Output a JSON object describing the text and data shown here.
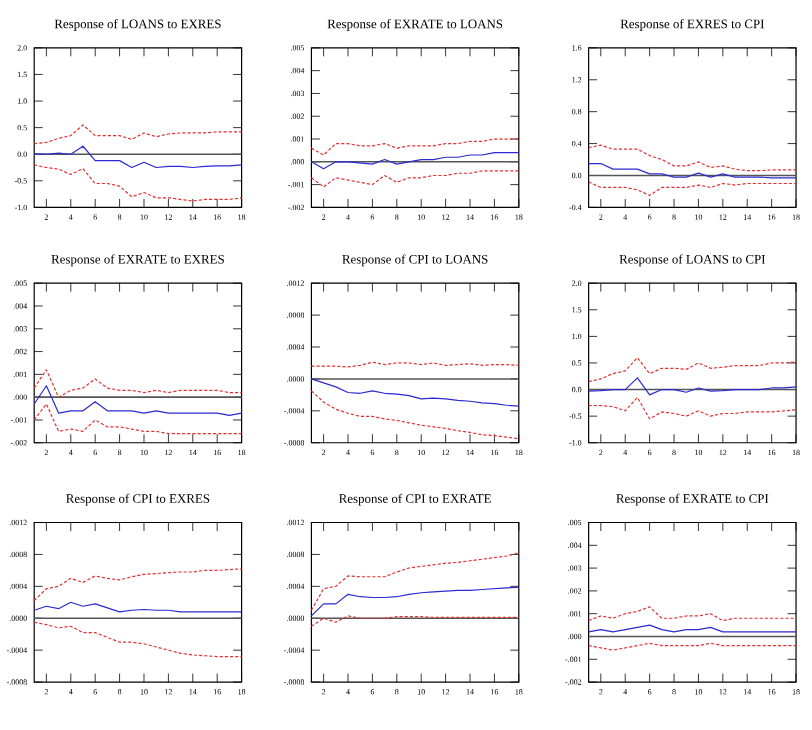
{
  "chart_data": [
    {
      "type": "line",
      "title": "Response of LOANS to EXRES",
      "x": [
        1,
        2,
        3,
        4,
        5,
        6,
        7,
        8,
        9,
        10,
        11,
        12,
        13,
        14,
        15,
        16,
        17,
        18
      ],
      "xlim": [
        1,
        18
      ],
      "xticks": [
        2,
        4,
        6,
        8,
        10,
        12,
        14,
        16,
        18
      ],
      "ylim": [
        -1.0,
        2.0
      ],
      "yticks": [
        {
          "value": -1.0,
          "label": "-1.0"
        },
        {
          "value": -0.5,
          "label": "-0.5"
        },
        {
          "value": 0.0,
          "label": "0.0"
        },
        {
          "value": 0.5,
          "label": "0.5"
        },
        {
          "value": 1.0,
          "label": "1.0"
        },
        {
          "value": 1.5,
          "label": "1.5"
        },
        {
          "value": 2.0,
          "label": "2.0"
        }
      ],
      "ref_lines": [
        {
          "axis": "y",
          "value": 0,
          "color": "#555555"
        }
      ],
      "series": [
        {
          "color": "#2a2ad0",
          "line_style": "solid",
          "values": [
            0.0,
            0.0,
            0.02,
            0.0,
            0.15,
            -0.12,
            -0.12,
            -0.12,
            -0.25,
            -0.15,
            -0.25,
            -0.23,
            -0.23,
            -0.25,
            -0.23,
            -0.22,
            -0.22,
            -0.2
          ]
        },
        {
          "color": "#e03030",
          "line_style": "dashed",
          "values": [
            0.2,
            0.22,
            0.3,
            0.35,
            0.55,
            0.35,
            0.35,
            0.35,
            0.28,
            0.4,
            0.33,
            0.38,
            0.4,
            0.4,
            0.4,
            0.42,
            0.42,
            0.42
          ]
        },
        {
          "color": "#e03030",
          "line_style": "dashed",
          "values": [
            -0.2,
            -0.25,
            -0.28,
            -0.38,
            -0.27,
            -0.55,
            -0.55,
            -0.6,
            -0.8,
            -0.72,
            -0.82,
            -0.82,
            -0.85,
            -0.88,
            -0.85,
            -0.85,
            -0.85,
            -0.82
          ]
        }
      ]
    },
    {
      "type": "line",
      "title": "Response of EXRATE to LOANS",
      "x": [
        1,
        2,
        3,
        4,
        5,
        6,
        7,
        8,
        9,
        10,
        11,
        12,
        13,
        14,
        15,
        16,
        17,
        18
      ],
      "xlim": [
        1,
        18
      ],
      "xticks": [
        2,
        4,
        6,
        8,
        10,
        12,
        14,
        16,
        18
      ],
      "ylim": [
        -0.002,
        0.005
      ],
      "yticks": [
        {
          "value": -0.002,
          "label": "-.002"
        },
        {
          "value": -0.001,
          "label": "-.001"
        },
        {
          "value": 0.0,
          "label": ".000"
        },
        {
          "value": 0.001,
          "label": ".001"
        },
        {
          "value": 0.002,
          "label": ".002"
        },
        {
          "value": 0.003,
          "label": ".003"
        },
        {
          "value": 0.004,
          "label": ".004"
        },
        {
          "value": 0.005,
          "label": ".005"
        }
      ],
      "ref_lines": [
        {
          "axis": "y",
          "value": 0,
          "color": "#555555"
        }
      ],
      "series": [
        {
          "color": "#2a2ad0",
          "line_style": "solid",
          "values": [
            0.0,
            -0.0003,
            0.0,
            0.0,
            -5e-05,
            -0.0001,
            0.0001,
            -0.0001,
            0.0,
            0.0001,
            0.0001,
            0.0002,
            0.0002,
            0.0003,
            0.0003,
            0.0004,
            0.0004,
            0.0004
          ]
        },
        {
          "color": "#e03030",
          "line_style": "dashed",
          "values": [
            0.0006,
            0.0003,
            0.0008,
            0.0008,
            0.0007,
            0.0007,
            0.0008,
            0.0006,
            0.0007,
            0.0007,
            0.0007,
            0.0008,
            0.0008,
            0.0009,
            0.0009,
            0.001,
            0.001,
            0.001
          ]
        },
        {
          "color": "#e03030",
          "line_style": "dashed",
          "values": [
            -0.0007,
            -0.0011,
            -0.0007,
            -0.0008,
            -0.0009,
            -0.001,
            -0.0006,
            -0.0009,
            -0.0007,
            -0.0007,
            -0.0006,
            -0.0006,
            -0.0005,
            -0.0005,
            -0.0004,
            -0.0004,
            -0.0004,
            -0.0004
          ]
        }
      ]
    },
    {
      "type": "line",
      "title": "Response of EXRES to CPI",
      "x": [
        1,
        2,
        3,
        4,
        5,
        6,
        7,
        8,
        9,
        10,
        11,
        12,
        13,
        14,
        15,
        16,
        17,
        18
      ],
      "xlim": [
        1,
        18
      ],
      "xticks": [
        2,
        4,
        6,
        8,
        10,
        12,
        14,
        16,
        18
      ],
      "ylim": [
        -0.4,
        1.6
      ],
      "yticks": [
        {
          "value": -0.4,
          "label": "-0.4"
        },
        {
          "value": 0.0,
          "label": "0.0"
        },
        {
          "value": 0.4,
          "label": "0.4"
        },
        {
          "value": 0.8,
          "label": "0.8"
        },
        {
          "value": 1.2,
          "label": "1.2"
        },
        {
          "value": 1.6,
          "label": "1.6"
        }
      ],
      "ref_lines": [
        {
          "axis": "y",
          "value": 0,
          "color": "#555555"
        }
      ],
      "series": [
        {
          "color": "#2a2ad0",
          "line_style": "solid",
          "values": [
            0.15,
            0.15,
            0.08,
            0.08,
            0.08,
            0.02,
            0.02,
            -0.02,
            -0.02,
            0.03,
            -0.02,
            0.02,
            -0.02,
            -0.02,
            -0.02,
            -0.03,
            -0.03,
            -0.03
          ]
        },
        {
          "color": "#e03030",
          "line_style": "dashed",
          "values": [
            0.35,
            0.38,
            0.33,
            0.33,
            0.33,
            0.25,
            0.2,
            0.12,
            0.12,
            0.17,
            0.1,
            0.12,
            0.08,
            0.06,
            0.06,
            0.07,
            0.07,
            0.07
          ]
        },
        {
          "color": "#e03030",
          "line_style": "dashed",
          "values": [
            -0.08,
            -0.15,
            -0.15,
            -0.15,
            -0.18,
            -0.25,
            -0.15,
            -0.15,
            -0.15,
            -0.12,
            -0.15,
            -0.1,
            -0.12,
            -0.1,
            -0.1,
            -0.1,
            -0.1,
            -0.1
          ]
        }
      ]
    },
    {
      "type": "line",
      "title": "Response of EXRATE to EXRES",
      "x": [
        1,
        2,
        3,
        4,
        5,
        6,
        7,
        8,
        9,
        10,
        11,
        12,
        13,
        14,
        15,
        16,
        17,
        18
      ],
      "xlim": [
        1,
        18
      ],
      "xticks": [
        2,
        4,
        6,
        8,
        10,
        12,
        14,
        16,
        18
      ],
      "ylim": [
        -0.002,
        0.005
      ],
      "yticks": [
        {
          "value": -0.002,
          "label": "-.002"
        },
        {
          "value": -0.001,
          "label": "-.001"
        },
        {
          "value": 0.0,
          "label": ".000"
        },
        {
          "value": 0.001,
          "label": ".001"
        },
        {
          "value": 0.002,
          "label": ".002"
        },
        {
          "value": 0.003,
          "label": ".003"
        },
        {
          "value": 0.004,
          "label": ".004"
        },
        {
          "value": 0.005,
          "label": ".005"
        }
      ],
      "ref_lines": [
        {
          "axis": "y",
          "value": 0,
          "color": "#555555"
        }
      ],
      "series": [
        {
          "color": "#2a2ad0",
          "line_style": "solid",
          "values": [
            -0.0003,
            0.0005,
            -0.0007,
            -0.0006,
            -0.0006,
            -0.0002,
            -0.0006,
            -0.0006,
            -0.0006,
            -0.0007,
            -0.0006,
            -0.0007,
            -0.0007,
            -0.0007,
            -0.0007,
            -0.0007,
            -0.0008,
            -0.0007
          ]
        },
        {
          "color": "#e03030",
          "line_style": "dashed",
          "values": [
            0.0004,
            0.0012,
            0.0,
            0.0003,
            0.0004,
            0.0008,
            0.0004,
            0.0003,
            0.0003,
            0.0002,
            0.0003,
            0.0002,
            0.0003,
            0.0003,
            0.0003,
            0.0003,
            0.0002,
            0.0002
          ]
        },
        {
          "color": "#e03030",
          "line_style": "dashed",
          "values": [
            -0.001,
            -0.0003,
            -0.0015,
            -0.0014,
            -0.0015,
            -0.001,
            -0.0013,
            -0.0013,
            -0.0014,
            -0.0015,
            -0.0015,
            -0.0016,
            -0.0016,
            -0.0016,
            -0.0016,
            -0.0016,
            -0.0016,
            -0.0016
          ]
        }
      ]
    },
    {
      "type": "line",
      "title": "Response of CPI to LOANS",
      "x": [
        1,
        2,
        3,
        4,
        5,
        6,
        7,
        8,
        9,
        10,
        11,
        12,
        13,
        14,
        15,
        16,
        17,
        18
      ],
      "xlim": [
        1,
        18
      ],
      "xticks": [
        2,
        4,
        6,
        8,
        10,
        12,
        14,
        16,
        18
      ],
      "ylim": [
        -0.0008,
        0.0012
      ],
      "yticks": [
        {
          "value": -0.0008,
          "label": "-.0008"
        },
        {
          "value": -0.0004,
          "label": "-.0004"
        },
        {
          "value": 0.0,
          "label": ".0000"
        },
        {
          "value": 0.0004,
          "label": ".0004"
        },
        {
          "value": 0.0008,
          "label": ".0008"
        },
        {
          "value": 0.0012,
          "label": ".0012"
        }
      ],
      "ref_lines": [
        {
          "axis": "y",
          "value": 0,
          "color": "#555555"
        }
      ],
      "series": [
        {
          "color": "#2a2ad0",
          "line_style": "solid",
          "values": [
            0.0,
            -5e-05,
            -0.0001,
            -0.00017,
            -0.00018,
            -0.00015,
            -0.00018,
            -0.00019,
            -0.00021,
            -0.00025,
            -0.00024,
            -0.00025,
            -0.00027,
            -0.00028,
            -0.0003,
            -0.00031,
            -0.00033,
            -0.00034
          ]
        },
        {
          "color": "#e03030",
          "line_style": "dashed",
          "values": [
            0.00016,
            0.00016,
            0.00016,
            0.00015,
            0.00017,
            0.00021,
            0.00018,
            0.0002,
            0.0002,
            0.00018,
            0.0002,
            0.00017,
            0.00018,
            0.00019,
            0.00017,
            0.00018,
            0.00018,
            0.00017
          ]
        },
        {
          "color": "#e03030",
          "line_style": "dashed",
          "values": [
            -0.00015,
            -0.00029,
            -0.00038,
            -0.00043,
            -0.00047,
            -0.00047,
            -0.0005,
            -0.00052,
            -0.00055,
            -0.00058,
            -0.0006,
            -0.00062,
            -0.00065,
            -0.00067,
            -0.0007,
            -0.00071,
            -0.00073,
            -0.00075
          ]
        }
      ]
    },
    {
      "type": "line",
      "title": "Response of LOANS to CPI",
      "x": [
        1,
        2,
        3,
        4,
        5,
        6,
        7,
        8,
        9,
        10,
        11,
        12,
        13,
        14,
        15,
        16,
        17,
        18
      ],
      "xlim": [
        1,
        18
      ],
      "xticks": [
        2,
        4,
        6,
        8,
        10,
        12,
        14,
        16,
        18
      ],
      "ylim": [
        -1.0,
        2.0
      ],
      "yticks": [
        {
          "value": -1.0,
          "label": "-1.0"
        },
        {
          "value": -0.5,
          "label": "-0.5"
        },
        {
          "value": 0.0,
          "label": "0.0"
        },
        {
          "value": 0.5,
          "label": "0.5"
        },
        {
          "value": 1.0,
          "label": "1.0"
        },
        {
          "value": 1.5,
          "label": "1.5"
        },
        {
          "value": 2.0,
          "label": "2.0"
        }
      ],
      "ref_lines": [
        {
          "axis": "y",
          "value": 0,
          "color": "#555555"
        }
      ],
      "series": [
        {
          "color": "#2a2ad0",
          "line_style": "solid",
          "values": [
            -0.03,
            -0.02,
            0.0,
            0.0,
            0.22,
            -0.1,
            0.0,
            0.0,
            -0.05,
            0.03,
            -0.03,
            -0.02,
            0.0,
            0.0,
            0.0,
            0.03,
            0.03,
            0.05
          ]
        },
        {
          "color": "#e03030",
          "line_style": "dashed",
          "values": [
            0.15,
            0.2,
            0.3,
            0.35,
            0.6,
            0.3,
            0.4,
            0.4,
            0.38,
            0.5,
            0.4,
            0.42,
            0.45,
            0.45,
            0.45,
            0.5,
            0.5,
            0.52
          ]
        },
        {
          "color": "#e03030",
          "line_style": "dashed",
          "values": [
            -0.3,
            -0.3,
            -0.32,
            -0.4,
            -0.15,
            -0.55,
            -0.42,
            -0.45,
            -0.5,
            -0.4,
            -0.5,
            -0.45,
            -0.45,
            -0.42,
            -0.42,
            -0.42,
            -0.4,
            -0.38
          ]
        }
      ]
    },
    {
      "type": "line",
      "title": "Response of CPI to EXRES",
      "x": [
        1,
        2,
        3,
        4,
        5,
        6,
        7,
        8,
        9,
        10,
        11,
        12,
        13,
        14,
        15,
        16,
        17,
        18
      ],
      "xlim": [
        1,
        18
      ],
      "xticks": [
        2,
        4,
        6,
        8,
        10,
        12,
        14,
        16,
        18
      ],
      "ylim": [
        -0.0008,
        0.0012
      ],
      "yticks": [
        {
          "value": -0.0008,
          "label": "-.0008"
        },
        {
          "value": -0.0004,
          "label": "-.0004"
        },
        {
          "value": 0.0,
          "label": ".0000"
        },
        {
          "value": 0.0004,
          "label": ".0004"
        },
        {
          "value": 0.0008,
          "label": ".0008"
        },
        {
          "value": 0.0012,
          "label": ".0012"
        }
      ],
      "ref_lines": [
        {
          "axis": "y",
          "value": 0,
          "color": "#555555"
        }
      ],
      "series": [
        {
          "color": "#2a2ad0",
          "line_style": "solid",
          "values": [
            0.0001,
            0.00015,
            0.00012,
            0.0002,
            0.00015,
            0.00018,
            0.00013,
            8e-05,
            0.0001,
            0.00011,
            0.0001,
            0.0001,
            8e-05,
            8e-05,
            8e-05,
            8e-05,
            8e-05,
            8e-05
          ]
        },
        {
          "color": "#e03030",
          "line_style": "dashed",
          "values": [
            0.00022,
            0.00037,
            0.0004,
            0.0005,
            0.00045,
            0.00053,
            0.0005,
            0.00048,
            0.00052,
            0.00055,
            0.00056,
            0.00057,
            0.00058,
            0.00058,
            0.0006,
            0.0006,
            0.00061,
            0.00062
          ]
        },
        {
          "color": "#e03030",
          "line_style": "dashed",
          "values": [
            -5e-05,
            -8e-05,
            -0.00012,
            -0.0001,
            -0.00018,
            -0.00018,
            -0.00024,
            -0.0003,
            -0.0003,
            -0.00032,
            -0.00036,
            -0.0004,
            -0.00044,
            -0.00046,
            -0.00047,
            -0.00048,
            -0.00048,
            -0.00048
          ]
        }
      ]
    },
    {
      "type": "line",
      "title": "Response of CPI to EXRATE",
      "x": [
        1,
        2,
        3,
        4,
        5,
        6,
        7,
        8,
        9,
        10,
        11,
        12,
        13,
        14,
        15,
        16,
        17,
        18
      ],
      "xlim": [
        1,
        18
      ],
      "xticks": [
        2,
        4,
        6,
        8,
        10,
        12,
        14,
        16,
        18
      ],
      "ylim": [
        -0.0008,
        0.0012
      ],
      "yticks": [
        {
          "value": -0.0008,
          "label": "-.0008"
        },
        {
          "value": -0.0004,
          "label": "-.0004"
        },
        {
          "value": 0.0,
          "label": ".0000"
        },
        {
          "value": 0.0004,
          "label": ".0004"
        },
        {
          "value": 0.0008,
          "label": ".0008"
        },
        {
          "value": 0.0012,
          "label": ".0012"
        }
      ],
      "ref_lines": [
        {
          "axis": "y",
          "value": 0,
          "color": "#555555"
        }
      ],
      "series": [
        {
          "color": "#2a2ad0",
          "line_style": "solid",
          "values": [
            3e-05,
            0.00018,
            0.00018,
            0.0003,
            0.00027,
            0.00026,
            0.00026,
            0.00027,
            0.0003,
            0.00032,
            0.00033,
            0.00034,
            0.00035,
            0.00035,
            0.00036,
            0.00037,
            0.00038,
            0.00039
          ]
        },
        {
          "color": "#e03030",
          "line_style": "dashed",
          "values": [
            0.0001,
            0.00037,
            0.0004,
            0.00053,
            0.00052,
            0.00052,
            0.00052,
            0.00058,
            0.00063,
            0.00065,
            0.00067,
            0.00069,
            0.0007,
            0.00072,
            0.00074,
            0.00076,
            0.00078,
            0.00082
          ]
        },
        {
          "color": "#e03030",
          "line_style": "dashed",
          "values": [
            -0.0001,
            0.0,
            -5e-05,
            3e-05,
            0.0,
            0.0,
            0.0,
            2e-05,
            2e-05,
            2e-05,
            1e-05,
            1e-05,
            1e-05,
            1e-05,
            1e-05,
            1e-05,
            1e-05,
            1e-05
          ]
        }
      ]
    },
    {
      "type": "line",
      "title": "Response of EXRATE to CPI",
      "x": [
        1,
        2,
        3,
        4,
        5,
        6,
        7,
        8,
        9,
        10,
        11,
        12,
        13,
        14,
        15,
        16,
        17,
        18
      ],
      "xlim": [
        1,
        18
      ],
      "xticks": [
        2,
        4,
        6,
        8,
        10,
        12,
        14,
        16,
        18
      ],
      "ylim": [
        -0.002,
        0.005
      ],
      "yticks": [
        {
          "value": -0.002,
          "label": "-.002"
        },
        {
          "value": -0.001,
          "label": "-.001"
        },
        {
          "value": 0.0,
          "label": ".000"
        },
        {
          "value": 0.001,
          "label": ".001"
        },
        {
          "value": 0.002,
          "label": ".002"
        },
        {
          "value": 0.003,
          "label": ".003"
        },
        {
          "value": 0.004,
          "label": ".004"
        },
        {
          "value": 0.005,
          "label": ".005"
        }
      ],
      "ref_lines": [
        {
          "axis": "y",
          "value": 0,
          "color": "#555555"
        }
      ],
      "series": [
        {
          "color": "#2a2ad0",
          "line_style": "solid",
          "values": [
            0.0002,
            0.0003,
            0.0002,
            0.0003,
            0.0004,
            0.0005,
            0.0003,
            0.0002,
            0.0003,
            0.0003,
            0.0004,
            0.0002,
            0.0002,
            0.0002,
            0.0002,
            0.0002,
            0.0002,
            0.0002
          ]
        },
        {
          "color": "#e03030",
          "line_style": "dashed",
          "values": [
            0.0007,
            0.0009,
            0.0008,
            0.001,
            0.0011,
            0.0013,
            0.0008,
            0.0008,
            0.0009,
            0.0009,
            0.001,
            0.0007,
            0.0008,
            0.0008,
            0.0008,
            0.0008,
            0.0008,
            0.0008
          ]
        },
        {
          "color": "#e03030",
          "line_style": "dashed",
          "values": [
            -0.0004,
            -0.0005,
            -0.0006,
            -0.0005,
            -0.0004,
            -0.0003,
            -0.0004,
            -0.0004,
            -0.0004,
            -0.0004,
            -0.0003,
            -0.0004,
            -0.0004,
            -0.0004,
            -0.0004,
            -0.0004,
            -0.0004,
            -0.0004
          ]
        }
      ]
    }
  ]
}
